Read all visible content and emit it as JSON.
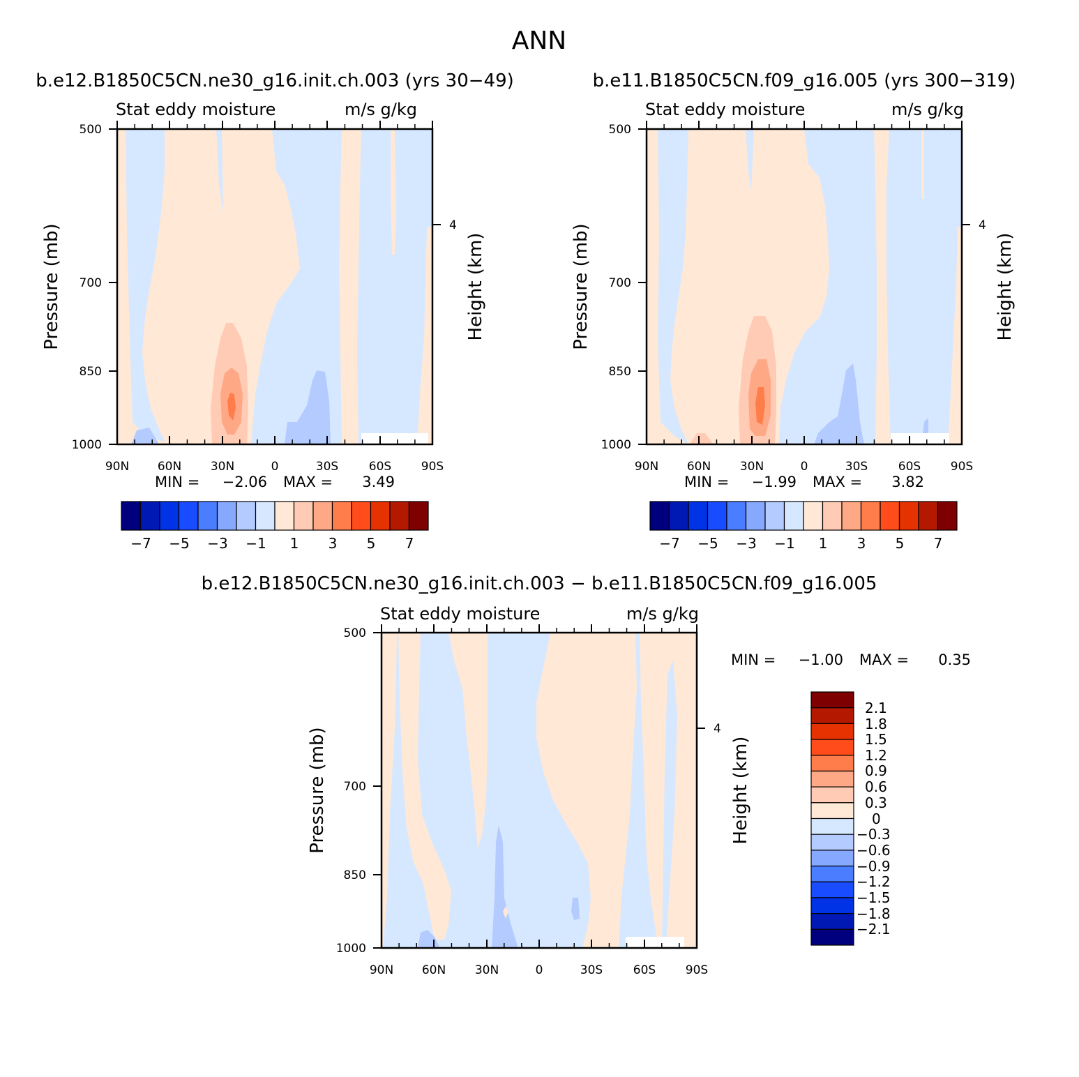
{
  "main_title": "ANN",
  "chart_data": [
    {
      "type": "contour",
      "title": "b.e12.B1850C5CN.ne30_g16.init.ch.003 (yrs 30-49)",
      "left_string": "Stat eddy moisture",
      "right_string": "m/s g/kg",
      "ylabel": "Pressure (mb)",
      "ylabel_right": "Height (km)",
      "yticks": [
        "500",
        "700",
        "850",
        "1000"
      ],
      "yticks_right": [
        "4"
      ],
      "xticks": [
        "90N",
        "60N",
        "30N",
        "0",
        "30S",
        "60S",
        "90S"
      ],
      "min_label": "MIN =",
      "min": "-2.06",
      "max_label": "MAX =",
      "max": "3.49",
      "colorbar_labels": [
        "-7",
        "-5",
        "-3",
        "-1",
        "1",
        "3",
        "5",
        "7"
      ]
    },
    {
      "type": "contour",
      "title": "b.e11.B1850C5CN.f09_g16.005 (yrs 300-319)",
      "left_string": "Stat eddy moisture",
      "right_string": "m/s g/kg",
      "ylabel": "Pressure (mb)",
      "ylabel_right": "Height (km)",
      "yticks": [
        "500",
        "700",
        "850",
        "1000"
      ],
      "yticks_right": [
        "4"
      ],
      "xticks": [
        "90N",
        "60N",
        "30N",
        "0",
        "30S",
        "60S",
        "90S"
      ],
      "min_label": "MIN =",
      "min": "-1.99",
      "max_label": "MAX =",
      "max": "3.82",
      "colorbar_labels": [
        "-7",
        "-5",
        "-3",
        "-1",
        "1",
        "3",
        "5",
        "7"
      ]
    },
    {
      "type": "contour",
      "title": "b.e12.B1850C5CN.ne30_g16.init.ch.003 - b.e11.B1850C5CN.f09_g16.005",
      "left_string": "Stat eddy moisture",
      "right_string": "m/s g/kg",
      "ylabel": "Pressure (mb)",
      "ylabel_right": "Height (km)",
      "yticks": [
        "500",
        "700",
        "850",
        "1000"
      ],
      "yticks_right": [
        "4"
      ],
      "xticks": [
        "90N",
        "60N",
        "30N",
        "0",
        "30S",
        "60S",
        "90S"
      ],
      "min_label": "MIN =",
      "min": "-1.00",
      "max_label": "MAX =",
      "max": "0.35",
      "colorbar_labels": [
        "2.1",
        "1.8",
        "1.5",
        "1.2",
        "0.9",
        "0.6",
        "0.3",
        "0",
        "-0.3",
        "-0.6",
        "-0.9",
        "-1.2",
        "-1.5",
        "-1.8",
        "-2.1"
      ]
    }
  ],
  "colors": {
    "palette": [
      "#00007f",
      "#0019b4",
      "#0032e6",
      "#1a4cff",
      "#4a7dff",
      "#86a8ff",
      "#b4cbff",
      "#d6e8ff",
      "#ffe8d6",
      "#ffcbb4",
      "#ffa886",
      "#ff7d4a",
      "#ff4c1a",
      "#e63200",
      "#b41900",
      "#7f0000"
    ],
    "light_blue": "#d6e8ff",
    "blue2": "#b4cbff",
    "light_orange": "#ffe8d6",
    "orange2": "#ffcbb4",
    "orange3": "#ffa886",
    "orange4": "#ff7d4a"
  }
}
